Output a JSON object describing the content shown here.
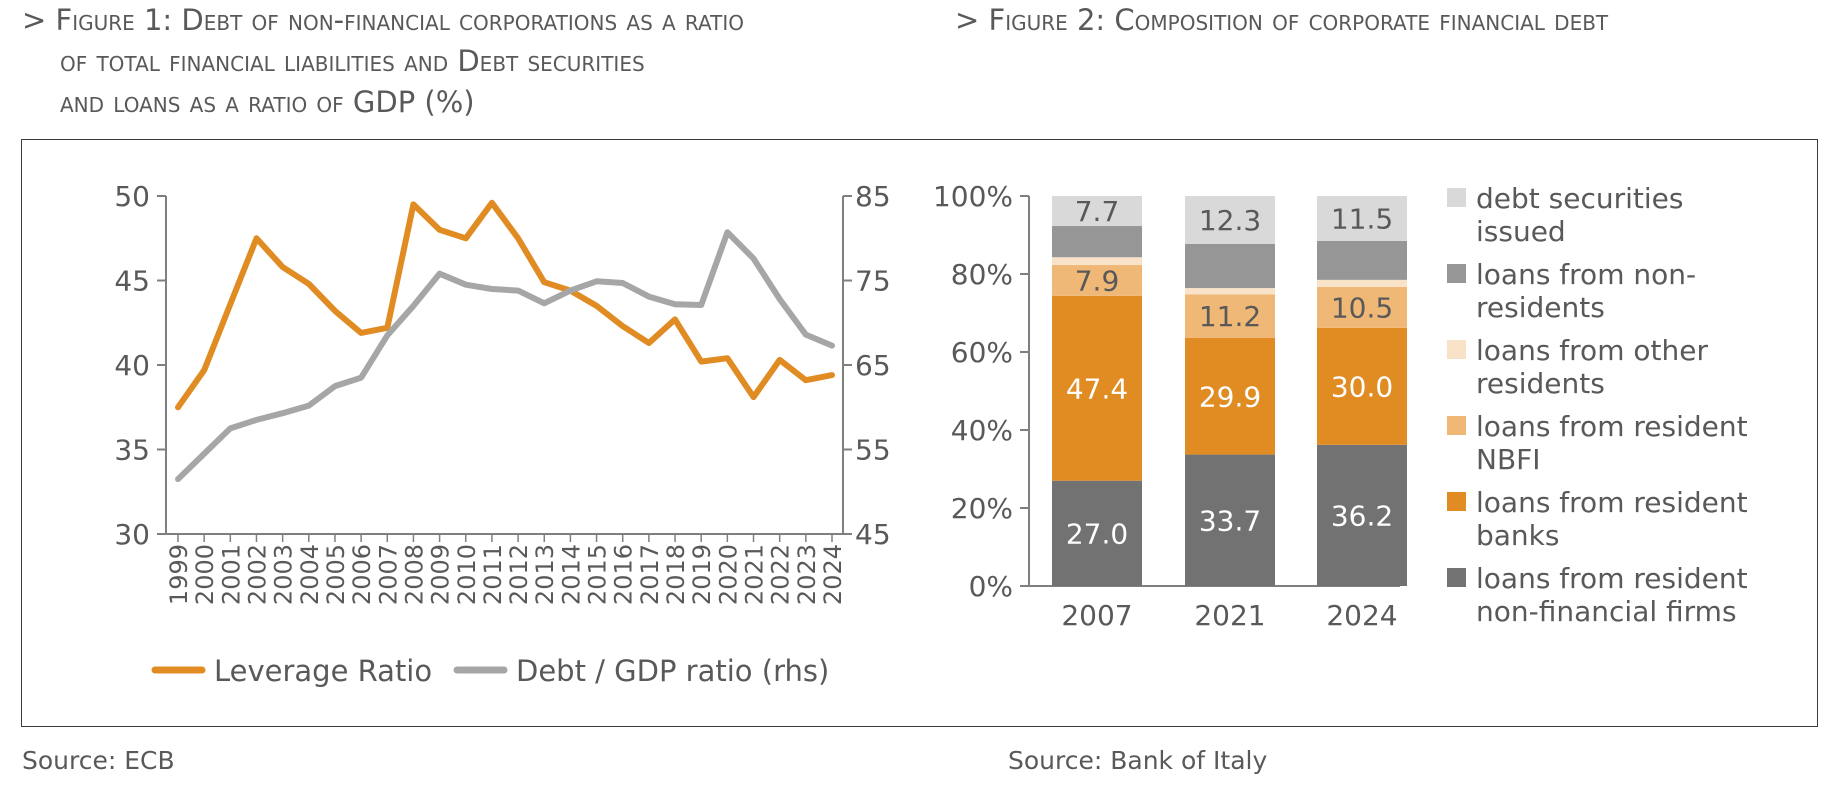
{
  "figure1": {
    "title_lines": [
      "> Figure 1: Debt of non-financial corporations as a ratio",
      "of total financial liabilities and Debt securities",
      "and loans as a ratio of GDP (%)"
    ],
    "source": "Source: ECB"
  },
  "figure2": {
    "title": "> Figure 2: Composition of corporate financial debt",
    "source": "Source: Bank of Italy"
  },
  "colors": {
    "leverage": "#e08c23",
    "debt_gdp": "#a6a6a6",
    "axis": "#7f7f7f",
    "text": "#595959"
  },
  "chart_data": [
    {
      "type": "line",
      "title": "",
      "x": [
        "1999",
        "2000",
        "2001",
        "2002",
        "2003",
        "2004",
        "2005",
        "2006",
        "2007",
        "2008",
        "2009",
        "2010",
        "2011",
        "2012",
        "2013",
        "2014",
        "2015",
        "2016",
        "2017",
        "2018",
        "2019",
        "2020",
        "2021",
        "2022",
        "2023",
        "2024"
      ],
      "ylim": [
        30,
        50
      ],
      "y_ticks": [
        "50",
        "45",
        "40",
        "35",
        "30"
      ],
      "y2lim": [
        45,
        85
      ],
      "y2_ticks": [
        "85",
        "75",
        "65",
        "55",
        "45"
      ],
      "series": [
        {
          "name": "Leverage Ratio",
          "axis": "left",
          "color": "#e08c23",
          "values": [
            37.5,
            39.7,
            43.6,
            47.5,
            45.8,
            44.8,
            43.2,
            41.9,
            42.2,
            49.5,
            48.0,
            47.5,
            49.6,
            47.5,
            44.9,
            44.4,
            43.5,
            42.3,
            41.3,
            42.7,
            40.2,
            40.4,
            38.1,
            40.3,
            39.1,
            39.4
          ]
        },
        {
          "name": "Debt / GDP ratio (rhs)",
          "axis": "right",
          "color": "#a6a6a6",
          "values": [
            51.5,
            54.5,
            57.5,
            58.5,
            59.3,
            60.2,
            62.5,
            63.5,
            68.5,
            72.0,
            75.8,
            74.5,
            74.0,
            73.8,
            72.3,
            73.8,
            74.9,
            74.7,
            73.1,
            72.2,
            72.1,
            80.7,
            77.6,
            72.8,
            68.6,
            67.3
          ]
        }
      ]
    },
    {
      "type": "bar",
      "stacked": true,
      "title": "",
      "categories": [
        "2007",
        "2021",
        "2024"
      ],
      "ylim": [
        0,
        100
      ],
      "y_ticks": [
        "100%",
        "80%",
        "60%",
        "40%",
        "20%",
        "0%"
      ],
      "legend_position": "right",
      "series": [
        {
          "name": "loans from resident non-financial firms",
          "color": "#727272",
          "values": [
            27.0,
            33.7,
            36.2
          ],
          "labels": [
            "27.0",
            "33.7",
            "36.2"
          ],
          "label_color": "#ffffff"
        },
        {
          "name": "loans from resident banks",
          "color": "#e08c23",
          "values": [
            47.4,
            29.9,
            30.0
          ],
          "labels": [
            "47.4",
            "29.9",
            "30.0"
          ],
          "label_color": "#ffffff"
        },
        {
          "name": "loans from resident NBFI",
          "color": "#efb877",
          "values": [
            7.9,
            11.2,
            10.5
          ],
          "labels": [
            "7.9",
            "11.2",
            "10.5"
          ],
          "label_color": "#595959"
        },
        {
          "name": "loans from other residents",
          "color": "#f9e3c8",
          "values": [
            2.0,
            1.6,
            1.8
          ],
          "labels": [
            "",
            "",
            ""
          ],
          "label_color": "#595959"
        },
        {
          "name": "loans from non-residents",
          "color": "#969696",
          "values": [
            8.0,
            11.3,
            10.0
          ],
          "labels": [
            "",
            "",
            ""
          ],
          "label_color": "#595959"
        },
        {
          "name": "debt securities issued",
          "color": "#d9d9d9",
          "values": [
            7.7,
            12.3,
            11.5
          ],
          "labels": [
            "7.7",
            "12.3",
            "11.5"
          ],
          "label_color": "#595959"
        }
      ],
      "legend_lines": [
        {
          "color": "#d9d9d9",
          "lines": [
            "debt securities",
            "issued"
          ]
        },
        {
          "color": "#969696",
          "lines": [
            "loans from non-",
            "residents"
          ]
        },
        {
          "color": "#f9e3c8",
          "lines": [
            "loans from other",
            "residents"
          ]
        },
        {
          "color": "#efb877",
          "lines": [
            "loans from resident",
            "NBFI"
          ]
        },
        {
          "color": "#e08c23",
          "lines": [
            "loans from resident",
            "banks"
          ]
        },
        {
          "color": "#727272",
          "lines": [
            "loans from resident",
            "non-financial firms"
          ]
        }
      ]
    }
  ]
}
